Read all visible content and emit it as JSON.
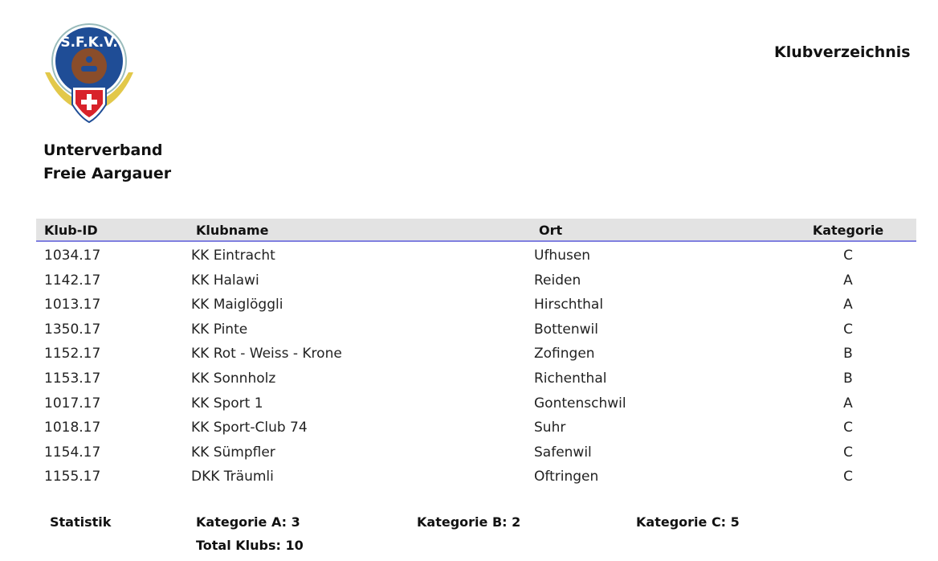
{
  "header": {
    "logo_text": "S.F.K.V.",
    "title": "Klubverzeichnis",
    "org_line1": "Unterverband",
    "org_line2": "Freie Aargauer"
  },
  "table": {
    "columns": [
      "Klub-ID",
      "Klubname",
      "Ort",
      "Kategorie"
    ],
    "rows": [
      [
        "1034.17",
        "KK Eintracht",
        "Ufhusen",
        "C"
      ],
      [
        "1142.17",
        "KK Halawi",
        "Reiden",
        "A"
      ],
      [
        "1013.17",
        "KK Maiglöggli",
        "Hirschthal",
        "A"
      ],
      [
        "1350.17",
        "KK Pinte",
        "Bottenwil",
        "C"
      ],
      [
        "1152.17",
        "KK Rot - Weiss - Krone",
        "Zofingen",
        "B"
      ],
      [
        "1153.17",
        "KK Sonnholz",
        "Richenthal",
        "B"
      ],
      [
        "1017.17",
        "KK Sport 1",
        "Gontenschwil",
        "A"
      ],
      [
        "1018.17",
        "KK Sport-Club 74",
        "Suhr",
        "C"
      ],
      [
        "1154.17",
        "KK Sümpfler",
        "Safenwil",
        "C"
      ],
      [
        "1155.17",
        "DKK Träumli",
        "Oftringen",
        "C"
      ]
    ],
    "header_bg": "#e3e3e3",
    "header_rule": "#8080e0"
  },
  "stats": {
    "label": "Statistik",
    "cat_a": "Kategorie A: 3",
    "cat_b": "Kategorie B: 2",
    "cat_c": "Kategorie C: 5",
    "total": "Total Klubs: 10"
  }
}
